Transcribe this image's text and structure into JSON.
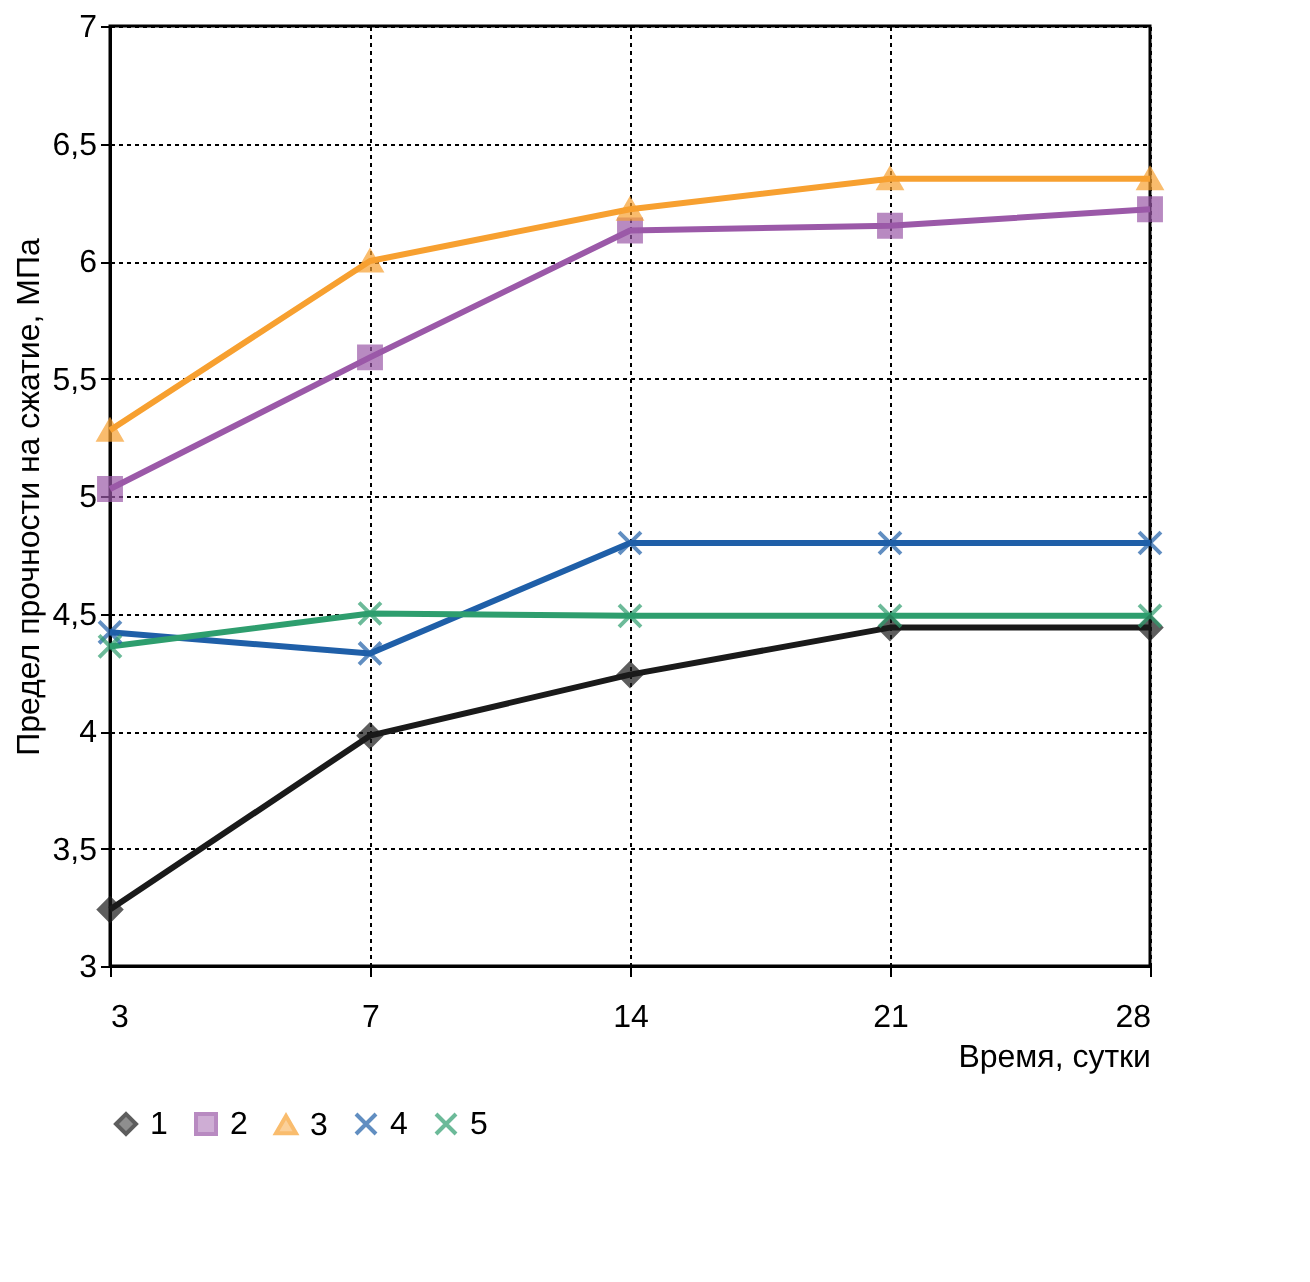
{
  "chart_data": {
    "type": "line",
    "xlabel": "Время, сутки",
    "ylabel": "Предел прочности на сжатие, МПа",
    "categories": [
      "3",
      "7",
      "14",
      "21",
      "28"
    ],
    "ylim": [
      3,
      7
    ],
    "yticks": [
      3,
      {
        "value": 3.5,
        "label": "3,5"
      },
      4,
      {
        "value": 4.5,
        "label": "4,5"
      },
      5,
      {
        "value": 5.5,
        "label": "5,5"
      },
      6,
      {
        "value": 6.5,
        "label": "6,5"
      },
      7
    ],
    "grid": true,
    "legend": "bottom",
    "line_style": "solid",
    "series": [
      {
        "name": "1",
        "color": "#1a1a1a",
        "marker": "diamond",
        "values": [
          3.24,
          3.98,
          4.24,
          4.44,
          4.44
        ]
      },
      {
        "name": "2",
        "color": "#9b59a8",
        "marker": "square",
        "values": [
          5.03,
          5.59,
          6.13,
          6.15,
          6.22
        ]
      },
      {
        "name": "3",
        "color": "#f7a030",
        "marker": "triangle",
        "values": [
          5.28,
          6.0,
          6.22,
          6.35,
          6.35
        ]
      },
      {
        "name": "4",
        "color": "#1f5fa8",
        "marker": "cross",
        "values": [
          4.42,
          4.33,
          4.8,
          4.8,
          4.8
        ]
      },
      {
        "name": "5",
        "color": "#2e9e6e",
        "marker": "cross",
        "values": [
          4.36,
          4.5,
          4.49,
          4.49,
          4.49
        ]
      }
    ]
  }
}
